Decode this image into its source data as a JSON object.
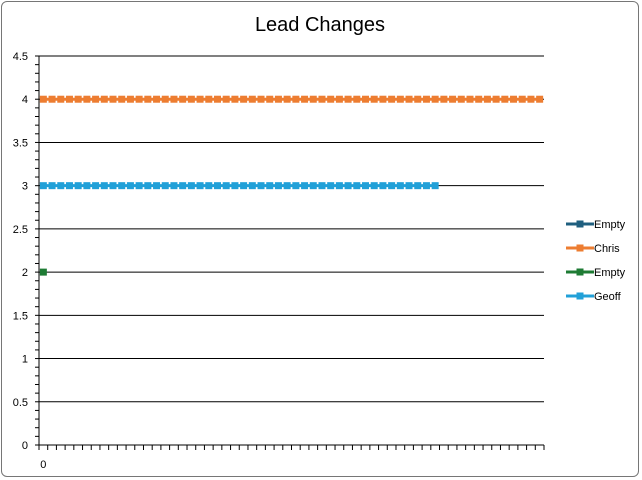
{
  "chart_data": {
    "type": "line",
    "title": "Lead Changes",
    "xlabel": "",
    "ylabel": "",
    "ylim": [
      0,
      4.5
    ],
    "ytick_labels": [
      "0",
      "0.5",
      "1",
      "1.5",
      "2",
      "2.5",
      "3",
      "3.5",
      "4",
      "4.5"
    ],
    "xtick_labels": [
      "0"
    ],
    "x_count": 58,
    "grid": true,
    "legend_position": "right",
    "series": [
      {
        "name": "Empty",
        "color": "#1f5f7f",
        "x_start": 0,
        "values": []
      },
      {
        "name": "Chris",
        "color": "#ed7d31",
        "x_start": 0,
        "values": [
          4,
          4,
          4,
          4,
          4,
          4,
          4,
          4,
          4,
          4,
          4,
          4,
          4,
          4,
          4,
          4,
          4,
          4,
          4,
          4,
          4,
          4,
          4,
          4,
          4,
          4,
          4,
          4,
          4,
          4,
          4,
          4,
          4,
          4,
          4,
          4,
          4,
          4,
          4,
          4,
          4,
          4,
          4,
          4,
          4,
          4,
          4,
          4,
          4,
          4,
          4,
          4,
          4,
          4,
          4,
          4,
          4,
          4
        ]
      },
      {
        "name": "Empty",
        "color": "#1e7b34",
        "x_start": 0,
        "values": [
          2
        ]
      },
      {
        "name": "Geoff",
        "color": "#21a0d8",
        "x_start": 0,
        "values": [
          3,
          3,
          3,
          3,
          3,
          3,
          3,
          3,
          3,
          3,
          3,
          3,
          3,
          3,
          3,
          3,
          3,
          3,
          3,
          3,
          3,
          3,
          3,
          3,
          3,
          3,
          3,
          3,
          3,
          3,
          3,
          3,
          3,
          3,
          3,
          3,
          3,
          3,
          3,
          3,
          3,
          3,
          3,
          3,
          3,
          3
        ]
      }
    ]
  }
}
